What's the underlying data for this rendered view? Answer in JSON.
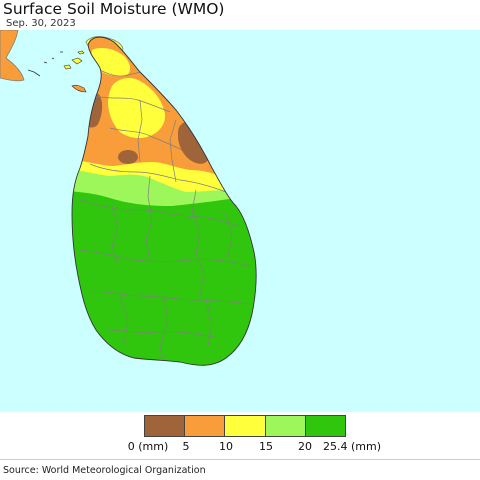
{
  "title": "Surface Soil Moisture (WMO)",
  "date": "Sep. 30, 2023",
  "legend": {
    "colors": [
      "#a0643a",
      "#f99d3a",
      "#ffff3c",
      "#9ef75a",
      "#30c60e"
    ],
    "ticks": [
      "0 (mm)",
      "5",
      "10",
      "15",
      "20",
      "25.4 (mm)"
    ]
  },
  "colors": {
    "ocean": "#ccffff",
    "mainland": "#f99d3a",
    "border": "#7f7f7f"
  },
  "source": "Source: World Meteorological Organization"
}
